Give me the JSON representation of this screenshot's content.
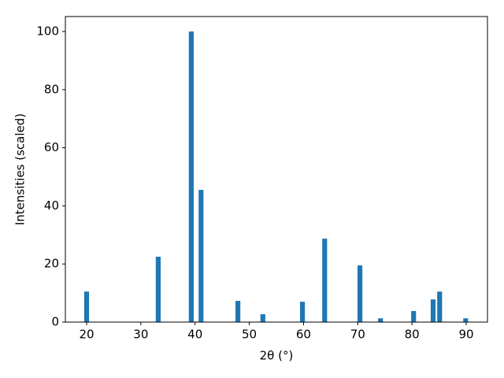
{
  "chart_data": {
    "type": "bar",
    "xlabel": "2θ (°)",
    "ylabel": "Intensities (scaled)",
    "x": [
      20.0,
      33.2,
      39.3,
      41.1,
      47.9,
      52.5,
      59.8,
      63.9,
      70.4,
      74.2,
      80.3,
      83.9,
      85.1,
      89.9
    ],
    "values": [
      10.5,
      22.5,
      100,
      45.5,
      7.3,
      2.7,
      7.0,
      28.7,
      19.5,
      1.3,
      3.8,
      7.8,
      10.5,
      1.3
    ],
    "bar_width": 0.9,
    "color": "#1f77b4",
    "xlim": [
      16.08,
      93.92
    ],
    "xticks": [
      20,
      30,
      40,
      50,
      60,
      70,
      80,
      90
    ],
    "ylim": [
      0,
      105.15
    ],
    "yticks": [
      0,
      20,
      40,
      60,
      80,
      100
    ]
  }
}
